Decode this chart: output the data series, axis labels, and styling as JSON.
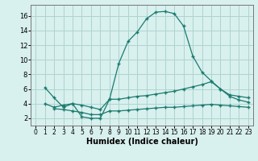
{
  "xlabel": "Humidex (Indice chaleur)",
  "bg_color": "#d8f0ee",
  "grid_color": "#aed4d0",
  "line_color": "#1a7a6e",
  "xlim": [
    -0.5,
    23.5
  ],
  "ylim": [
    1.0,
    17.5
  ],
  "xticks": [
    0,
    1,
    2,
    3,
    4,
    5,
    6,
    7,
    8,
    9,
    10,
    11,
    12,
    13,
    14,
    15,
    16,
    17,
    18,
    19,
    20,
    21,
    22,
    23
  ],
  "yticks": [
    2,
    4,
    6,
    8,
    10,
    12,
    14,
    16
  ],
  "line1_x": [
    1,
    2,
    3,
    4,
    5,
    6,
    7,
    8,
    9,
    10,
    11,
    12,
    13,
    14,
    15,
    16,
    17,
    18,
    19,
    20,
    21,
    22,
    23
  ],
  "line1_y": [
    6.2,
    4.8,
    3.5,
    4.0,
    2.2,
    2.0,
    2.0,
    4.6,
    9.5,
    12.5,
    13.8,
    15.6,
    16.5,
    16.6,
    16.3,
    14.6,
    10.5,
    8.3,
    7.1,
    6.0,
    5.0,
    4.5,
    4.2
  ],
  "line2_x": [
    1,
    2,
    3,
    4,
    5,
    6,
    7,
    8,
    9,
    10,
    11,
    12,
    13,
    14,
    15,
    16,
    17,
    18,
    19,
    20,
    21,
    22,
    23
  ],
  "line2_y": [
    4.0,
    3.5,
    3.8,
    4.0,
    3.8,
    3.5,
    3.2,
    4.6,
    4.6,
    4.8,
    5.0,
    5.1,
    5.3,
    5.5,
    5.7,
    6.0,
    6.3,
    6.6,
    7.0,
    6.0,
    5.2,
    5.0,
    4.8
  ],
  "line3_x": [
    2,
    3,
    4,
    5,
    6,
    7,
    8,
    9,
    10,
    11,
    12,
    13,
    14,
    15,
    16,
    17,
    18,
    19,
    20,
    21,
    22,
    23
  ],
  "line3_y": [
    3.3,
    3.2,
    3.0,
    2.8,
    2.5,
    2.5,
    3.0,
    3.0,
    3.1,
    3.2,
    3.3,
    3.4,
    3.5,
    3.5,
    3.6,
    3.7,
    3.8,
    3.9,
    3.8,
    3.7,
    3.6,
    3.5
  ],
  "xtick_fontsize": 5.5,
  "ytick_fontsize": 6,
  "xlabel_fontsize": 7
}
